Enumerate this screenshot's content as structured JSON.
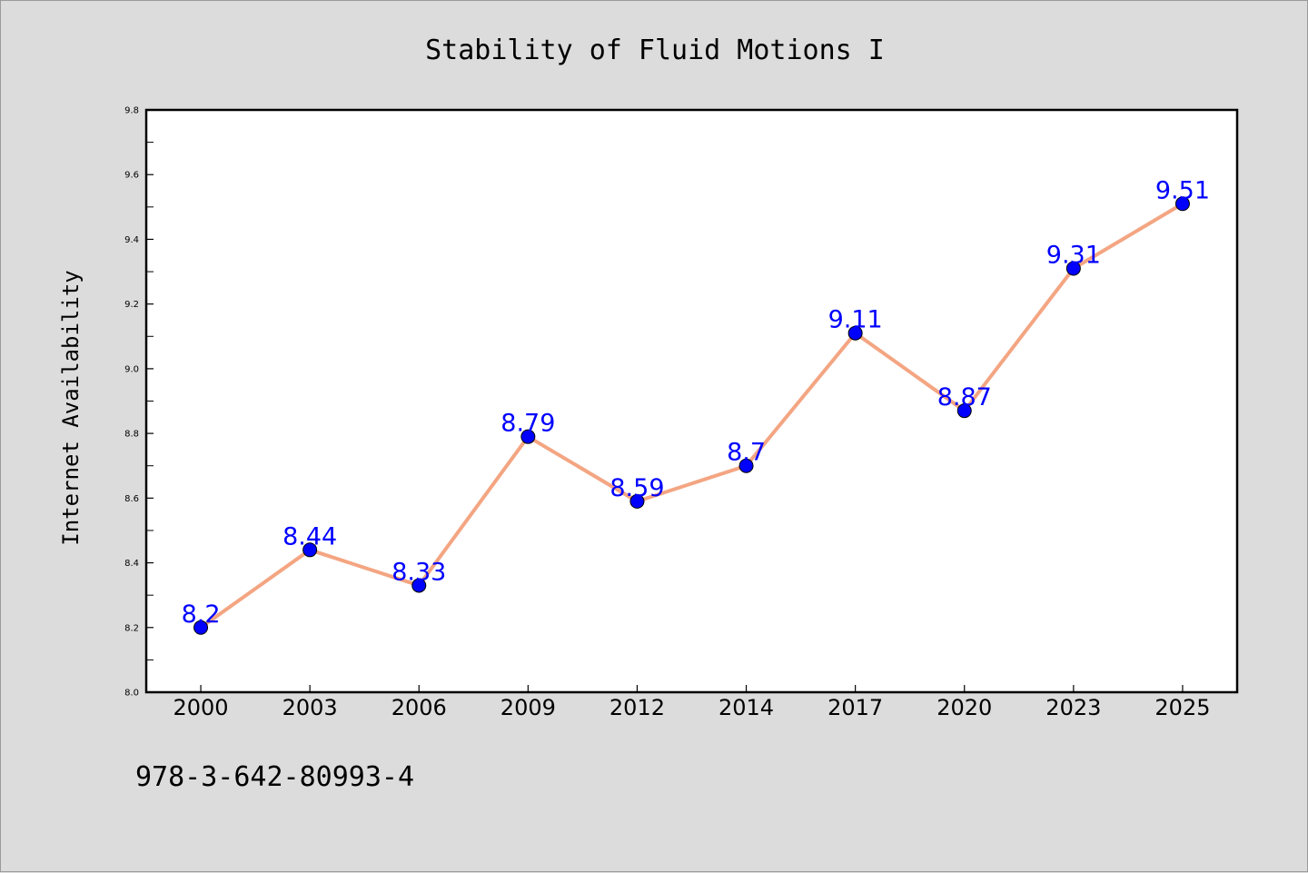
{
  "chart_data": {
    "type": "line",
    "title": "Stability of Fluid Motions I",
    "xlabel": "",
    "ylabel": "Internet Availability",
    "categories": [
      "2000",
      "2003",
      "2006",
      "2009",
      "2012",
      "2014",
      "2017",
      "2020",
      "2023",
      "2025"
    ],
    "series": [
      {
        "values": [
          8.2,
          8.44,
          8.33,
          8.79,
          8.59,
          8.7,
          9.11,
          8.87,
          9.31,
          9.51
        ],
        "data_labels": [
          "8.2",
          "8.44",
          "8.33",
          "8.79",
          "8.59",
          "8.7",
          "9.11",
          "8.87",
          "9.31",
          "9.51"
        ],
        "line_color": "#f4a582",
        "marker_color": "#0000ff",
        "label_color": "#0000ff"
      }
    ],
    "ylim": [
      8.0,
      9.8
    ],
    "yticks": [
      "8.0",
      "8.2",
      "8.4",
      "8.6",
      "8.8",
      "9.0",
      "9.2",
      "9.4",
      "9.6",
      "9.8"
    ],
    "grid": false,
    "legend": "none",
    "background_color": "#dcdcdc",
    "plot_background_color": "#ffffff",
    "annotation": "978-3-642-80993-4"
  }
}
